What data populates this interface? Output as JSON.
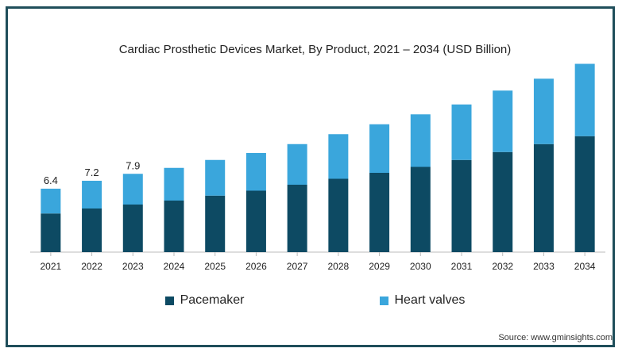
{
  "chart_data": {
    "type": "bar",
    "stacked": true,
    "title": "Cardiac Prosthetic Devices Market, By Product, 2021 – 2034 (USD Billion)",
    "xlabel": "",
    "ylabel": "",
    "categories": [
      "2021",
      "2022",
      "2023",
      "2024",
      "2025",
      "2026",
      "2027",
      "2028",
      "2029",
      "2030",
      "2031",
      "2032",
      "2033",
      "2034"
    ],
    "series": [
      {
        "name": "Pacemaker",
        "color": "#0d4a63",
        "values": [
          3.9,
          4.4,
          4.8,
          5.2,
          5.7,
          6.2,
          6.8,
          7.4,
          8.0,
          8.6,
          9.3,
          10.1,
          10.9,
          11.7
        ]
      },
      {
        "name": "Heart valves",
        "color": "#3aa6dc",
        "values": [
          2.5,
          2.8,
          3.1,
          3.3,
          3.6,
          3.8,
          4.1,
          4.5,
          4.9,
          5.3,
          5.6,
          6.2,
          6.6,
          7.3
        ]
      }
    ],
    "data_labels": [
      "6.4",
      "7.2",
      "7.9",
      "",
      "",
      "",
      "",
      "",
      "",
      "",
      "",
      "",
      "",
      ""
    ],
    "ylim": [
      0,
      20
    ],
    "grid": false,
    "legend_position": "bottom"
  },
  "source": "Source: www.gminsights.com"
}
